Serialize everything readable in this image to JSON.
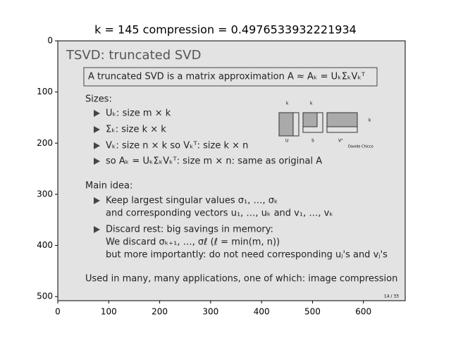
{
  "chart_data": {
    "type": "image",
    "title": "k = 145 compression = 0.4976533932221934",
    "xlim": [
      0,
      682
    ],
    "ylim": [
      508,
      0
    ],
    "xticks": [
      0,
      100,
      200,
      300,
      400,
      500,
      600
    ],
    "yticks": [
      0,
      100,
      200,
      300,
      400,
      500
    ]
  },
  "slide": {
    "title": "TSVD: truncated SVD",
    "definition": "A truncated SVD is a matrix approximation A ≈ Aₖ = UₖΣₖVₖᵀ",
    "sizes_heading": "Sizes:",
    "sizes": [
      "Uₖ: size m × k",
      "Σₖ: size k × k",
      "Vₖ: size n × k     so Vₖᵀ: size k × n",
      "so Aₖ = UₖΣₖVₖᵀ: size m × n: same as original A"
    ],
    "diagram": {
      "labels": [
        "k",
        "k",
        "k",
        "U",
        "S",
        "Vᵀ"
      ],
      "credit": "Davide Chicco"
    },
    "main_heading": "Main idea:",
    "main_points": [
      "Keep largest singular values σ₁, …, σₖ",
      "and corresponding vectors u₁, …, uₖ and v₁, …, vₖ",
      "Discard rest: big savings in memory:",
      "We discard σₖ₊₁, …, σℓ     (ℓ = min(m, n))",
      "but more importantly: do not need corresponding uⱼ's and vⱼ's"
    ],
    "footer": "Used in many, many applications, one of which: image compression",
    "page": "14 / 33"
  }
}
